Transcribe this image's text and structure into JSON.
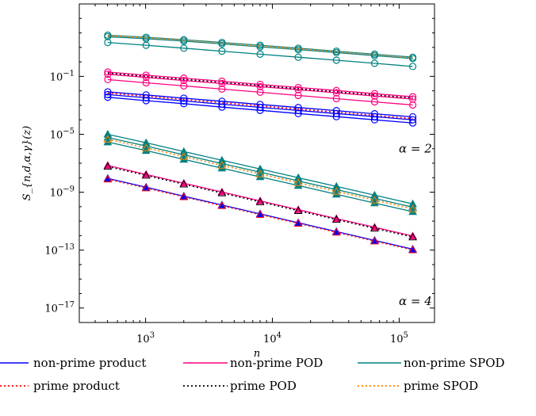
{
  "chart_data": {
    "type": "line",
    "title": "",
    "xlabel": "n",
    "ylabel": "S_{n,d,α,γ}(z)",
    "x_scale": "log",
    "y_scale": "log",
    "xlim": [
      300,
      190000
    ],
    "ylim": [
      1e-18,
      10000
    ],
    "x_ticks": [
      {
        "value": 1000,
        "label": "10^3"
      },
      {
        "value": 10000,
        "label": "10^4"
      },
      {
        "value": 100000,
        "label": "10^5"
      }
    ],
    "y_ticks": [
      {
        "value": 0.1,
        "label": "10^-1"
      },
      {
        "value": 1e-05,
        "label": "10^-5"
      },
      {
        "value": 1e-09,
        "label": "10^-9"
      },
      {
        "value": 1e-13,
        "label": "10^-13"
      },
      {
        "value": 1e-17,
        "label": "10^-17"
      }
    ],
    "grid": false,
    "x": [
      503,
      1009,
      2003,
      4001,
      8009,
      16001,
      32003,
      64007,
      128021
    ],
    "annotations": [
      {
        "text": "α = 2",
        "at_x": 125000,
        "at_y": 1e-06
      },
      {
        "text": "α = 4",
        "at_x": 125000,
        "at_y": 3e-17
      }
    ],
    "legend": {
      "placement": "below",
      "entries": [
        {
          "label": "non-prime product",
          "color": "#0000ff",
          "style": "solid"
        },
        {
          "label": "non-prime POD",
          "color": "#ff0080",
          "style": "solid"
        },
        {
          "label": "non-prime SPOD",
          "color": "#008080",
          "style": "solid"
        },
        {
          "label": "prime product",
          "color": "#ff0000",
          "style": "dotted"
        },
        {
          "label": "prime POD",
          "color": "#000000",
          "style": "dotted"
        },
        {
          "label": "prime SPOD",
          "color": "#ff8000",
          "style": "dotted"
        }
      ]
    },
    "series": [
      {
        "alpha": 2,
        "family": "non-prime SPOD",
        "color": "#008080",
        "dash": "solid",
        "marker": "circle",
        "values": [
          70,
          50,
          34,
          22,
          14,
          8.8,
          5.5,
          3.4,
          2.1
        ]
      },
      {
        "alpha": 2,
        "family": "non-prime SPOD",
        "color": "#008080",
        "dash": "solid",
        "marker": "circle",
        "values": [
          55,
          40,
          27,
          17.5,
          11,
          7,
          4.4,
          2.7,
          1.7
        ]
      },
      {
        "alpha": 2,
        "family": "non-prime SPOD",
        "color": "#008080",
        "dash": "solid",
        "marker": "circle",
        "values": [
          22,
          14,
          8.8,
          5.5,
          3.4,
          2.1,
          1.3,
          0.8,
          0.48
        ]
      },
      {
        "alpha": 2,
        "family": "prime SPOD",
        "color": "#ff8000",
        "dash": "dotted",
        "marker": "none",
        "values": [
          65,
          46,
          31,
          20,
          12.5,
          8,
          5,
          3.1,
          1.9
        ]
      },
      {
        "alpha": 2,
        "family": "non-prime POD",
        "color": "#ff0080",
        "dash": "solid",
        "marker": "circle",
        "values": [
          0.2,
          0.12,
          0.075,
          0.046,
          0.028,
          0.017,
          0.0105,
          0.0064,
          0.0039
        ]
      },
      {
        "alpha": 2,
        "family": "non-prime POD",
        "color": "#ff0080",
        "dash": "solid",
        "marker": "circle",
        "values": [
          0.14,
          0.085,
          0.052,
          0.032,
          0.0195,
          0.012,
          0.0073,
          0.0044,
          0.0027
        ]
      },
      {
        "alpha": 2,
        "family": "non-prime POD",
        "color": "#ff0080",
        "dash": "solid",
        "marker": "circle",
        "values": [
          0.06,
          0.036,
          0.022,
          0.0133,
          0.008,
          0.0048,
          0.0029,
          0.00175,
          0.00105
        ]
      },
      {
        "alpha": 2,
        "family": "prime POD",
        "color": "#000000",
        "dash": "dotted",
        "marker": "none",
        "values": [
          0.17,
          0.1,
          0.062,
          0.038,
          0.023,
          0.014,
          0.0085,
          0.0052,
          0.0032
        ]
      },
      {
        "alpha": 2,
        "family": "non-prime product",
        "color": "#0000ff",
        "dash": "solid",
        "marker": "circle",
        "values": [
          0.0085,
          0.0052,
          0.0031,
          0.0019,
          0.00115,
          0.0007,
          0.00043,
          0.00026,
          0.00016
        ]
      },
      {
        "alpha": 2,
        "family": "non-prime product",
        "color": "#0000ff",
        "dash": "solid",
        "marker": "circle",
        "values": [
          0.0055,
          0.0033,
          0.002,
          0.0012,
          0.00072,
          0.00044,
          0.00027,
          0.000165,
          0.0001
        ]
      },
      {
        "alpha": 2,
        "family": "non-prime product",
        "color": "#0000ff",
        "dash": "solid",
        "marker": "circle",
        "values": [
          0.0036,
          0.0021,
          0.0013,
          0.00075,
          0.00045,
          0.00027,
          0.000165,
          0.0001,
          6e-05
        ]
      },
      {
        "alpha": 2,
        "family": "prime product",
        "color": "#ff0000",
        "dash": "dotted",
        "marker": "none",
        "values": [
          0.007,
          0.0042,
          0.0025,
          0.0015,
          0.0009,
          0.00055,
          0.00034,
          0.0002,
          0.00012
        ]
      },
      {
        "alpha": 4,
        "family": "non-prime SPOD",
        "color": "#008080",
        "dash": "solid",
        "marker": "triangle",
        "values": [
          1e-05,
          2.6e-06,
          6.4e-07,
          1.6e-07,
          4e-08,
          1e-08,
          2.5e-09,
          6.2e-10,
          1.55e-10
        ]
      },
      {
        "alpha": 4,
        "family": "non-prime SPOD",
        "color": "#008080",
        "dash": "solid",
        "marker": "triangle",
        "values": [
          6e-06,
          1.55e-06,
          3.8e-07,
          9.5e-08,
          2.4e-08,
          6e-09,
          1.5e-09,
          3.7e-10,
          9.3e-11
        ]
      },
      {
        "alpha": 4,
        "family": "non-prime SPOD",
        "color": "#008080",
        "dash": "solid",
        "marker": "triangle",
        "values": [
          2.9e-06,
          7.5e-07,
          1.85e-07,
          4.6e-08,
          1.15e-08,
          2.9e-09,
          7.2e-10,
          1.8e-10,
          4.5e-11
        ]
      },
      {
        "alpha": 4,
        "family": "prime SPOD",
        "color": "#ff8000",
        "dash": "dotted",
        "marker": "triangle",
        "values": [
          4.5e-06,
          1.15e-06,
          2.9e-07,
          7.2e-08,
          1.8e-08,
          4.5e-09,
          1.12e-09,
          2.8e-10,
          7e-11
        ]
      },
      {
        "alpha": 4,
        "family": "non-prime POD",
        "color": "#ff0080",
        "dash": "solid",
        "marker": "triangle",
        "values": [
          7e-08,
          1.7e-08,
          4.2e-09,
          1.03e-09,
          2.5e-10,
          6.2e-11,
          1.5e-11,
          3.8e-12,
          9.3e-13
        ]
      },
      {
        "alpha": 4,
        "family": "prime POD",
        "color": "#000000",
        "dash": "dotted",
        "marker": "triangle",
        "values": [
          6e-08,
          1.45e-08,
          3.6e-09,
          8.8e-10,
          2.15e-10,
          5.3e-11,
          1.3e-11,
          3.2e-12,
          8e-13
        ]
      },
      {
        "alpha": 4,
        "family": "non-prime product",
        "color": "#0000ff",
        "dash": "solid",
        "marker": "triangle",
        "values": [
          9e-09,
          2.2e-09,
          5.3e-10,
          1.3e-10,
          3.2e-11,
          7.8e-12,
          1.9e-12,
          4.7e-13,
          1.15e-13
        ]
      },
      {
        "alpha": 4,
        "family": "prime product",
        "color": "#ff0000",
        "dash": "dotted",
        "marker": "triangle",
        "values": [
          8e-09,
          1.95e-09,
          4.8e-10,
          1.17e-10,
          2.85e-11,
          7e-12,
          1.7e-12,
          4.2e-13,
          1.03e-13
        ]
      }
    ]
  }
}
